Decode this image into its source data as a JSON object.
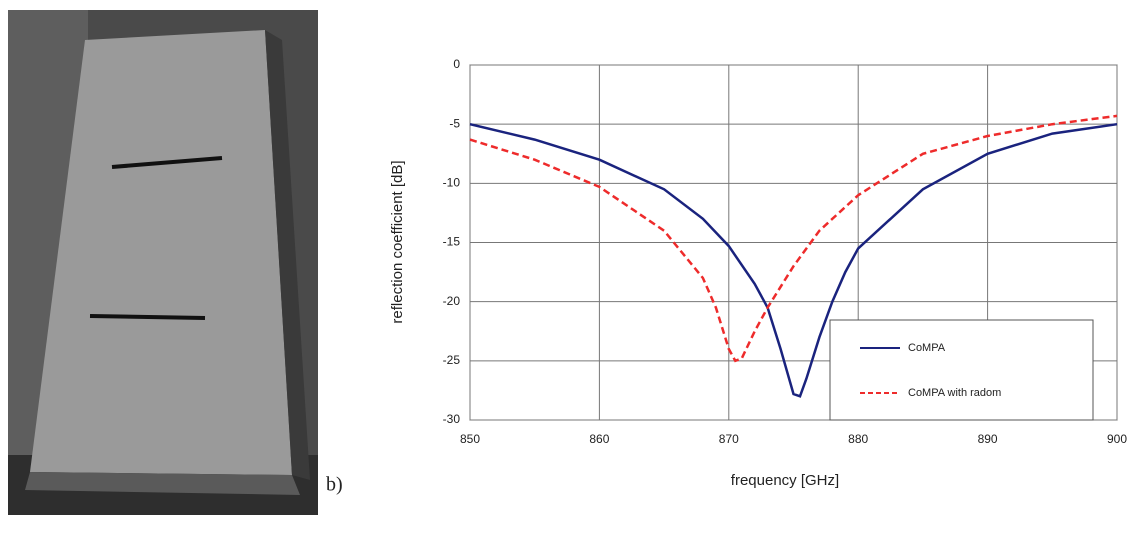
{
  "chart_data": {
    "type": "line",
    "annotation": "b)",
    "xlabel": "frequency [GHz]",
    "ylabel": "reflection coefficient [dB]",
    "xlim": [
      850,
      900
    ],
    "xticks": [
      850,
      860,
      870,
      880,
      890,
      900
    ],
    "ylim": [
      -30,
      0
    ],
    "yticks": [
      0,
      -5,
      -10,
      -15,
      -20,
      -25,
      -30
    ],
    "grid": true,
    "legend": "lower right",
    "series": [
      {
        "name": "CoMPA",
        "color": "#1a237e",
        "dash": false,
        "x": [
          850,
          855,
          860,
          865,
          868,
          870,
          872,
          873,
          874,
          875,
          875.5,
          876,
          877,
          878,
          879,
          880,
          885,
          890,
          895,
          900
        ],
        "values": [
          -5,
          -6.3,
          -8,
          -10.5,
          -13,
          -15.3,
          -18.5,
          -20.5,
          -24,
          -27.8,
          -28,
          -26.5,
          -23,
          -20,
          -17.5,
          -15.5,
          -10.5,
          -7.5,
          -5.8,
          -5
        ]
      },
      {
        "name": "CoMPA with radom",
        "color": "#ee2b2b",
        "dash": true,
        "x": [
          850,
          855,
          860,
          865,
          868,
          869,
          870,
          870.5,
          871,
          872,
          873,
          875,
          877,
          880,
          885,
          890,
          895,
          900
        ],
        "values": [
          -6.3,
          -8,
          -10.3,
          -14,
          -18,
          -20.5,
          -24,
          -25,
          -24.8,
          -22.5,
          -20.5,
          -17,
          -14,
          -11,
          -7.5,
          -6,
          -5,
          -4.3
        ]
      }
    ]
  }
}
